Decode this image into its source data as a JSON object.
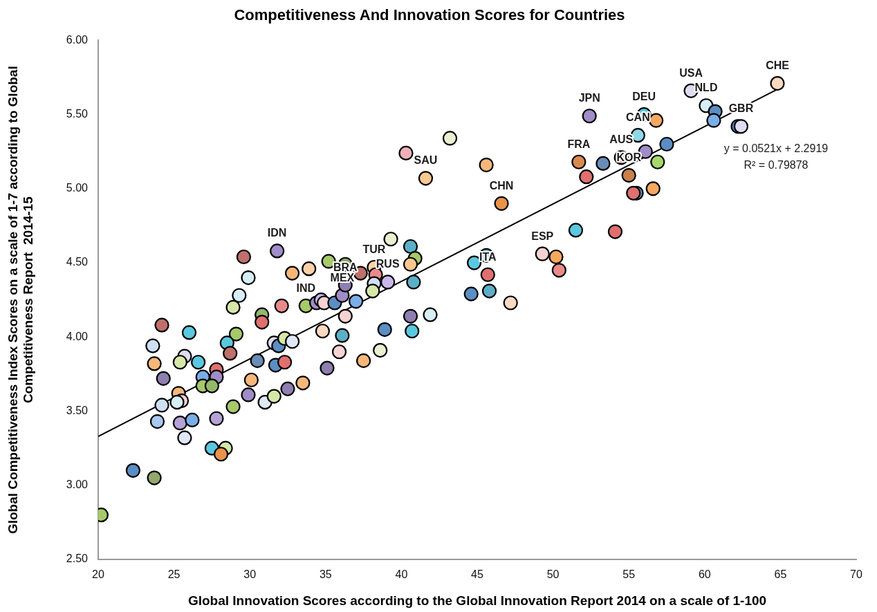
{
  "chart_data": {
    "type": "scatter",
    "title": "Competitiveness And Innovation Scores for Countries",
    "xlabel": "Global Innovation Scores according to the Global Innovation Report 2014 on a scale of 1-100",
    "ylabel": "Global Competitiveness Index Scores on a scale of 1-7 according to Global Competitiveness Report  2014-15",
    "xlim": [
      20,
      70
    ],
    "xticks": [
      20,
      25,
      30,
      35,
      40,
      45,
      50,
      55,
      60,
      65,
      70
    ],
    "ylim": [
      2.5,
      6
    ],
    "yticks": [
      {
        "value": 2.5,
        "label": "2.50"
      },
      {
        "value": 3,
        "label": "3.00"
      },
      {
        "value": 3.5,
        "label": "3.50"
      },
      {
        "value": 4,
        "label": "4.00"
      },
      {
        "value": 4.5,
        "label": "4.50"
      },
      {
        "value": 5,
        "label": "5.00"
      },
      {
        "value": 5.5,
        "label": "5.50"
      },
      {
        "value": 6,
        "label": "6.00"
      }
    ],
    "grid": false,
    "legend": false,
    "marker": "circle",
    "series": [
      {
        "x": [
          20.2,
          22.3,
          23.7,
          24.2,
          26.0,
          23.6,
          23.7,
          24.3,
          25.7,
          25.4,
          26.6,
          27.8,
          26.9,
          27.8,
          26.9,
          27.5,
          25.3,
          25.5,
          25.2,
          24.2,
          23.9,
          25.4,
          26.2,
          25.7,
          27.8,
          27.5,
          28.4,
          28.1,
          28.9,
          29.9,
          31.0,
          31.6,
          32.5,
          33.5,
          30.1,
          30.5,
          31.7,
          32.3,
          31.6,
          31.9,
          32.3,
          32.8,
          29.1,
          28.5,
          28.7,
          30.8,
          30.8,
          32.1,
          33.7,
          28.9,
          29.3,
          29.9,
          29.6,
          31.8,
          32.8,
          33.9,
          35.2,
          34.4,
          34.7,
          34.9,
          35.6,
          36.1,
          36.3,
          36.3,
          36.3,
          37.0,
          37.3,
          38.2,
          38.3,
          38.2,
          38.1,
          39.1,
          39.3,
          40.6,
          40.9,
          40.6,
          40.8,
          40.6,
          40.7,
          41.9,
          38.9,
          38.6,
          37.5,
          35.9,
          35.1,
          34.8,
          36.1,
          43.2,
          40.3,
          41.6,
          45.6,
          46.6,
          44.8,
          45.6,
          45.7,
          45.8,
          44.6,
          47.2,
          49.3,
          50.2,
          50.4,
          51.5,
          54.1,
          52.4,
          56.0,
          56.8,
          55.6,
          59.1,
          60.1,
          60.7,
          60.6,
          62.2,
          62.4,
          64.8,
          57.5,
          56.1,
          54.5,
          53.3,
          51.7,
          52.2,
          55.0,
          56.9,
          56.6,
          55.5,
          55.3
        ],
        "values": [
          2.8,
          3.1,
          3.05,
          4.08,
          4.03,
          3.94,
          3.82,
          3.72,
          3.87,
          3.83,
          3.83,
          3.78,
          3.73,
          3.73,
          3.67,
          3.67,
          3.62,
          3.57,
          3.56,
          3.54,
          3.43,
          3.42,
          3.44,
          3.32,
          3.45,
          3.25,
          3.25,
          3.21,
          3.53,
          3.61,
          3.56,
          3.6,
          3.65,
          3.69,
          3.71,
          3.84,
          3.81,
          3.83,
          3.96,
          3.94,
          3.99,
          3.97,
          4.02,
          3.96,
          3.89,
          4.15,
          4.1,
          4.21,
          4.21,
          4.2,
          4.28,
          4.4,
          4.54,
          4.58,
          4.43,
          4.46,
          4.51,
          4.23,
          4.25,
          4.23,
          4.23,
          4.28,
          4.35,
          4.49,
          4.14,
          4.24,
          4.43,
          4.47,
          4.42,
          4.36,
          4.31,
          4.37,
          4.66,
          4.61,
          4.53,
          4.49,
          4.37,
          4.14,
          4.04,
          4.15,
          4.05,
          3.91,
          3.84,
          3.9,
          3.79,
          4.04,
          4.01,
          5.34,
          5.24,
          5.07,
          5.16,
          4.9,
          4.5,
          4.55,
          4.42,
          4.31,
          4.29,
          4.23,
          4.56,
          4.54,
          4.45,
          4.72,
          4.71,
          5.49,
          5.5,
          5.46,
          5.36,
          5.66,
          5.56,
          5.52,
          5.46,
          5.42,
          5.42,
          5.71,
          5.3,
          5.25,
          5.21,
          5.17,
          5.18,
          5.08,
          5.09,
          5.18,
          5.0,
          4.97,
          4.97
        ],
        "colors": [
          "#a6c96a",
          "#5b8ec4",
          "#93a86a",
          "#c0706a",
          "#5bc8e0",
          "#cfe0f5",
          "#f7b77a",
          "#8e7fb0",
          "#e0dcf0",
          "#d6e8a8",
          "#5bc8e0",
          "#e07070",
          "#7aaee8",
          "#a08cc8",
          "#a6c96a",
          "#93b86a",
          "#f7b77a",
          "#f6d3d3",
          "#d6eef5",
          "#cfe0f5",
          "#a9c8f0",
          "#b5a3d8",
          "#7aaee8",
          "#e0e8f8",
          "#b5a3d8",
          "#5bc8e0",
          "#d6e8a8",
          "#e8944a",
          "#a6c96a",
          "#a08cc8",
          "#e0e8f8",
          "#d6e8a8",
          "#8e7fb0",
          "#f7b77a",
          "#f7b77a",
          "#6a8db8",
          "#5b8ec4",
          "#e07070",
          "#e0dcf0",
          "#5b8ec4",
          "#d6e8a8",
          "#e0e8f8",
          "#a6c96a",
          "#5bc8e0",
          "#c0706a",
          "#93b86a",
          "#e07070",
          "#e98a8a",
          "#a6c96a",
          "#d6e8a8",
          "#d6eef5",
          "#d6eef5",
          "#c0706a",
          "#a08cc8",
          "#f7b77a",
          "#fcd1a8",
          "#a6c96a",
          "#a08cc8",
          "#c8b8e8",
          "#f6d3d3",
          "#5b8ec4",
          "#a08cc8",
          "#8e7fb0",
          "#93a86a",
          "#f6d3d3",
          "#7aaee8",
          "#c0706a",
          "#fcd1a8",
          "#e98a8a",
          "#cfe0f5",
          "#d6e8a8",
          "#c8b8e8",
          "#e8f0d0",
          "#5bb0c8",
          "#a6c96a",
          "#fcc890",
          "#5bb0c8",
          "#8e7fb0",
          "#5bc8e0",
          "#d6eef5",
          "#5b8ec4",
          "#e8f0d0",
          "#f7b77a",
          "#f6d3d3",
          "#8e7fb0",
          "#fcd9c0",
          "#5bb0c8",
          "#e8f0d0",
          "#f0b0b8",
          "#fcc890",
          "#f7b77a",
          "#e8944a",
          "#5bc8e0",
          "#5bc8e0",
          "#e07070",
          "#5bb0c8",
          "#5b8ec4",
          "#fcd9c0",
          "#f6d3d3",
          "#f7a860",
          "#e98a8a",
          "#5bc8e0",
          "#e07070",
          "#a08cc8",
          "#5bc8e0",
          "#f7a860",
          "#8ed8e8",
          "#e0dcf0",
          "#d6eef5",
          "#5b8ec4",
          "#7aaee8",
          "#5b8ec4",
          "#e0dcf0",
          "#fcd9c0",
          "#5b8ec4",
          "#a08cc8",
          "#e98a8a",
          "#6a8db8",
          "#d98a50",
          "#e07070",
          "#c9804a",
          "#a6d86a",
          "#f7a860",
          "#5b8ec4",
          "#e07070"
        ]
      },
      {
        "type": "line",
        "marker": "none",
        "x": [
          20,
          64.8
        ],
        "values": [
          3.33,
          5.67
        ],
        "color": "#000000"
      }
    ],
    "annotations": [
      {
        "text": "CHE",
        "x": 64.8,
        "y": 5.71
      },
      {
        "text": "USA",
        "x": 59.1,
        "y": 5.66
      },
      {
        "text": "NLD",
        "x": 60.1,
        "y": 5.56
      },
      {
        "text": "GBR",
        "x": 62.4,
        "y": 5.42
      },
      {
        "text": "JPN",
        "x": 52.4,
        "y": 5.49
      },
      {
        "text": "DEU",
        "x": 56.0,
        "y": 5.5
      },
      {
        "text": "CAN",
        "x": 55.6,
        "y": 5.36
      },
      {
        "text": "FRA",
        "x": 51.7,
        "y": 5.18
      },
      {
        "text": "AUS",
        "x": 54.5,
        "y": 5.21
      },
      {
        "text": "KOR",
        "x": 55.0,
        "y": 5.09
      },
      {
        "text": "SAU",
        "x": 41.6,
        "y": 5.07
      },
      {
        "text": "CHN",
        "x": 46.6,
        "y": 4.9
      },
      {
        "text": "ITA",
        "x": 45.7,
        "y": 4.42
      },
      {
        "text": "ESP",
        "x": 49.3,
        "y": 4.56
      },
      {
        "text": "IDN",
        "x": 31.8,
        "y": 4.58
      },
      {
        "text": "BRA",
        "x": 36.3,
        "y": 4.35
      },
      {
        "text": "TUR",
        "x": 38.2,
        "y": 4.47
      },
      {
        "text": "RUS",
        "x": 39.1,
        "y": 4.37
      },
      {
        "text": "MEX",
        "x": 36.1,
        "y": 4.28
      },
      {
        "text": "IND",
        "x": 33.7,
        "y": 4.21
      },
      "y = 0.0521x + 2.2919",
      "R² = 0.79878"
    ]
  }
}
